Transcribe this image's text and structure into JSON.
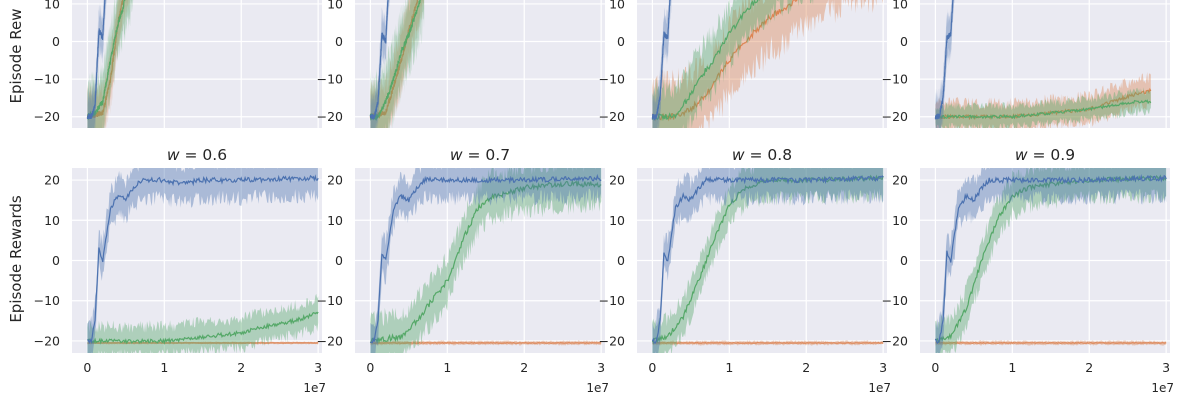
{
  "figure": {
    "ylabel": "Episode Rewards",
    "top_row_ylabel_visible": "Episode Rew",
    "x_offset_label": "1e7",
    "colors": {
      "background": "#eaeaf2",
      "grid": "#ffffff",
      "blue": "#4c72b0",
      "orange": "#dd8452",
      "green": "#55a868"
    }
  },
  "chart_data": [
    {
      "type": "line",
      "row": 0,
      "col": 0,
      "title": "",
      "xlim": [
        -0.2,
        3.05
      ],
      "ylim": [
        -23,
        27
      ],
      "grid": true,
      "yticks": [
        -20,
        -10,
        0,
        10
      ],
      "xticks": [
        0,
        1,
        2,
        3
      ],
      "series": [
        {
          "color": "blue",
          "x": [
            0,
            0.05,
            0.1,
            0.15,
            0.2,
            0.23,
            0.27
          ],
          "y": [
            -20,
            -20,
            -17,
            3,
            1,
            12,
            22
          ],
          "band": 6
        },
        {
          "color": "orange",
          "x": [
            0,
            0.2,
            0.3,
            0.4,
            0.5,
            0.6
          ],
          "y": [
            -20,
            -19,
            -10,
            5,
            15,
            22
          ],
          "band": 7
        },
        {
          "color": "green",
          "x": [
            0,
            0.1,
            0.2,
            0.3,
            0.4,
            0.45,
            0.5,
            0.55,
            0.6
          ],
          "y": [
            -20,
            -19,
            -16,
            -5,
            5,
            8,
            12,
            15,
            20
          ],
          "band": 9
        }
      ]
    },
    {
      "type": "line",
      "row": 0,
      "col": 1,
      "title": "",
      "xlim": [
        -0.2,
        3.05
      ],
      "ylim": [
        -23,
        27
      ],
      "grid": true,
      "yticks": [
        -20,
        -10,
        0,
        10
      ],
      "xticks": [
        0,
        1,
        2,
        3
      ],
      "series": [
        {
          "color": "blue",
          "x": [
            0,
            0.05,
            0.1,
            0.15,
            0.2,
            0.23,
            0.27
          ],
          "y": [
            -20,
            -20,
            -16,
            2,
            0,
            12,
            22
          ],
          "band": 6
        },
        {
          "color": "orange",
          "x": [
            0,
            0.2,
            0.3,
            0.4,
            0.5,
            0.6,
            0.7
          ],
          "y": [
            -20,
            -19,
            -12,
            -5,
            3,
            10,
            18
          ],
          "band": 8
        },
        {
          "color": "green",
          "x": [
            0,
            0.1,
            0.2,
            0.3,
            0.4,
            0.5,
            0.6,
            0.7
          ],
          "y": [
            -20,
            -20,
            -16,
            -10,
            -3,
            2,
            8,
            15
          ],
          "band": 10
        }
      ]
    },
    {
      "type": "line",
      "row": 0,
      "col": 2,
      "title": "",
      "xlim": [
        -0.2,
        3.05
      ],
      "ylim": [
        -23,
        27
      ],
      "grid": true,
      "yticks": [
        -20,
        -10,
        0,
        10
      ],
      "xticks": [
        0,
        1,
        2,
        3
      ],
      "series": [
        {
          "color": "blue",
          "x": [
            0,
            0.05,
            0.1,
            0.15,
            0.2,
            0.23,
            0.27
          ],
          "y": [
            -20,
            -20,
            -15,
            2,
            1,
            12,
            22
          ],
          "band": 6
        },
        {
          "color": "orange",
          "x": [
            0,
            0.3,
            0.5,
            0.7,
            0.9,
            1.1,
            1.3,
            1.5,
            1.8,
            2.1,
            2.4,
            2.7,
            3.0
          ],
          "y": [
            -20,
            -20,
            -18,
            -14,
            -8,
            -2,
            2,
            6,
            10,
            14,
            18,
            20,
            21
          ],
          "band": 10
        },
        {
          "color": "green",
          "x": [
            0,
            0.3,
            0.4,
            0.5,
            0.6,
            0.8,
            1.0,
            1.2,
            1.5,
            1.8,
            2.1,
            2.4,
            2.7,
            3.0
          ],
          "y": [
            -20,
            -20,
            -17,
            -14,
            -10,
            -5,
            2,
            8,
            14,
            18,
            20,
            21,
            21,
            21
          ],
          "band": 8
        }
      ]
    },
    {
      "type": "line",
      "row": 0,
      "col": 3,
      "title": "",
      "xlim": [
        -0.2,
        3.05
      ],
      "ylim": [
        -23,
        27
      ],
      "grid": true,
      "yticks": [
        -20,
        -10,
        0,
        10
      ],
      "xticks": [
        0,
        1,
        2,
        3
      ],
      "series": [
        {
          "color": "blue",
          "x": [
            0,
            0.05,
            0.1,
            0.15,
            0.2,
            0.23,
            0.27
          ],
          "y": [
            -20,
            -20,
            -15,
            1,
            2,
            12,
            22
          ],
          "band": 6
        },
        {
          "color": "orange",
          "x": [
            0,
            0.5,
            1.0,
            1.5,
            2.0,
            2.3,
            2.6,
            2.8
          ],
          "y": [
            -20,
            -20,
            -20,
            -19,
            -18,
            -16,
            -14,
            -13
          ],
          "band": 4
        },
        {
          "color": "green",
          "x": [
            0,
            0.5,
            1.0,
            1.5,
            2.0,
            2.3,
            2.6,
            2.8
          ],
          "y": [
            -20,
            -20,
            -20,
            -19,
            -18,
            -17,
            -16,
            -16
          ],
          "band": 3
        }
      ]
    },
    {
      "type": "line",
      "row": 1,
      "col": 0,
      "title": "w = 0.6",
      "xlim": [
        -0.2,
        3.05
      ],
      "ylim": [
        -23,
        23
      ],
      "grid": true,
      "yticks": [
        -20,
        -10,
        0,
        10,
        20
      ],
      "xticks": [
        0,
        1,
        2,
        3
      ],
      "series": [
        {
          "color": "blue",
          "x": [
            0,
            0.05,
            0.1,
            0.15,
            0.2,
            0.3,
            0.4,
            0.5,
            0.55,
            0.6,
            0.7,
            0.8,
            1.0,
            1.2,
            1.5,
            2.0,
            3.0
          ],
          "y": [
            -20,
            -20,
            -15,
            3,
            0,
            13,
            16,
            15,
            17,
            18,
            20,
            20,
            20,
            19,
            20,
            20,
            20.5
          ],
          "band": 5
        },
        {
          "color": "orange",
          "x": [
            0,
            1.0,
            2.0,
            3.0
          ],
          "y": [
            -20.5,
            -20.5,
            -20.5,
            -20.5
          ],
          "band": 0.3
        },
        {
          "color": "green",
          "x": [
            0,
            0.5,
            1.0,
            1.5,
            2.0,
            2.4,
            2.7,
            3.0
          ],
          "y": [
            -20,
            -20,
            -20,
            -19,
            -18,
            -16,
            -15,
            -13
          ],
          "band": 4
        }
      ]
    },
    {
      "type": "line",
      "row": 1,
      "col": 1,
      "title": "w = 0.7",
      "xlim": [
        -0.2,
        3.05
      ],
      "ylim": [
        -23,
        23
      ],
      "grid": true,
      "yticks": [
        -20,
        -10,
        0,
        10,
        20
      ],
      "xticks": [
        0,
        1,
        2,
        3
      ],
      "series": [
        {
          "color": "blue",
          "x": [
            0,
            0.05,
            0.1,
            0.15,
            0.2,
            0.3,
            0.4,
            0.5,
            0.6,
            0.7,
            0.8,
            1.0,
            1.5,
            2.0,
            3.0
          ],
          "y": [
            -20,
            -20,
            -15,
            2,
            0,
            13,
            16,
            15,
            18,
            20,
            20,
            20,
            20,
            20,
            20.5
          ],
          "band": 5
        },
        {
          "color": "orange",
          "x": [
            0,
            1.0,
            2.0,
            3.0
          ],
          "y": [
            -20.5,
            -20.5,
            -20.5,
            -20.5
          ],
          "band": 0.5
        },
        {
          "color": "green",
          "x": [
            0,
            0.4,
            0.6,
            0.8,
            1.0,
            1.2,
            1.4,
            1.6,
            2.0,
            2.5,
            3.0
          ],
          "y": [
            -20,
            -19,
            -15,
            -10,
            -5,
            5,
            13,
            16,
            18,
            19,
            19
          ],
          "band": 6
        }
      ]
    },
    {
      "type": "line",
      "row": 1,
      "col": 2,
      "title": "w = 0.8",
      "xlim": [
        -0.2,
        3.05
      ],
      "ylim": [
        -23,
        23
      ],
      "grid": true,
      "yticks": [
        -20,
        -10,
        0,
        10,
        20
      ],
      "xticks": [
        0,
        1,
        2,
        3
      ],
      "series": [
        {
          "color": "blue",
          "x": [
            0,
            0.05,
            0.1,
            0.15,
            0.2,
            0.3,
            0.4,
            0.5,
            0.6,
            0.7,
            0.8,
            1.0,
            1.5,
            2.0,
            3.0
          ],
          "y": [
            -20,
            -20,
            -15,
            2,
            0,
            13,
            16,
            15,
            18,
            20,
            20,
            20,
            20,
            20,
            20.5
          ],
          "band": 5
        },
        {
          "color": "orange",
          "x": [
            0,
            1.0,
            2.0,
            3.0
          ],
          "y": [
            -20.5,
            -20.5,
            -20.5,
            -20.5
          ],
          "band": 0.5
        },
        {
          "color": "green",
          "x": [
            0,
            0.2,
            0.4,
            0.6,
            0.8,
            1.0,
            1.2,
            1.5,
            2.0,
            3.0
          ],
          "y": [
            -20,
            -19,
            -14,
            -5,
            5,
            14,
            18,
            20,
            20,
            20.5
          ],
          "band": 5
        }
      ]
    },
    {
      "type": "line",
      "row": 1,
      "col": 3,
      "title": "w = 0.9",
      "xlim": [
        -0.2,
        3.05
      ],
      "ylim": [
        -23,
        23
      ],
      "grid": true,
      "yticks": [
        -20,
        -10,
        0,
        10,
        20
      ],
      "xticks": [
        0,
        1,
        2,
        3
      ],
      "series": [
        {
          "color": "blue",
          "x": [
            0,
            0.05,
            0.1,
            0.15,
            0.2,
            0.3,
            0.4,
            0.5,
            0.6,
            0.7,
            0.8,
            1.0,
            1.5,
            2.0,
            3.0
          ],
          "y": [
            -20,
            -20,
            -15,
            2,
            0,
            13,
            16,
            15,
            18,
            20,
            20,
            20,
            20,
            20,
            20.5
          ],
          "band": 5
        },
        {
          "color": "orange",
          "x": [
            0,
            1.0,
            2.0,
            3.0
          ],
          "y": [
            -20.5,
            -20.5,
            -20.5,
            -20.5
          ],
          "band": 0.5
        },
        {
          "color": "green",
          "x": [
            0,
            0.2,
            0.4,
            0.6,
            0.8,
            1.0,
            1.2,
            1.5,
            2.0,
            3.0
          ],
          "y": [
            -20,
            -19,
            -12,
            0,
            10,
            16,
            18,
            19,
            20,
            20.5
          ],
          "band": 5
        }
      ]
    }
  ]
}
